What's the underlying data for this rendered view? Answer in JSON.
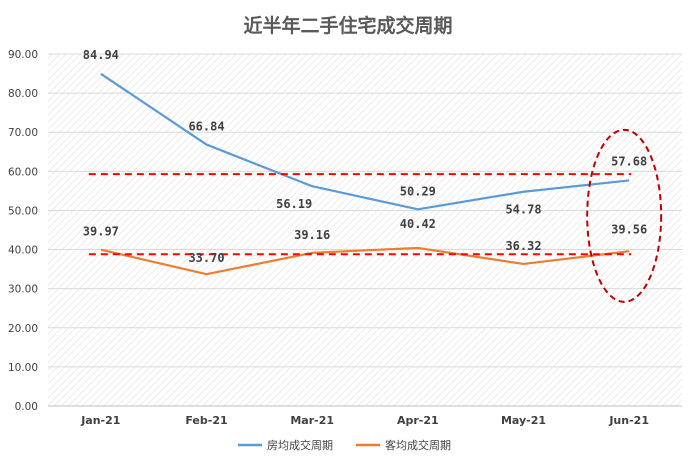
{
  "chart_data": {
    "type": "line",
    "title": "近半年二手住宅成交周期",
    "categories": [
      "Jan-21",
      "Feb-21",
      "Mar-21",
      "Apr-21",
      "May-21",
      "Jun-21"
    ],
    "ylim": [
      0,
      90
    ],
    "yticks": [
      "0.00",
      "10.00",
      "20.00",
      "30.00",
      "40.00",
      "50.00",
      "60.00",
      "70.00",
      "80.00",
      "90.00"
    ],
    "grid": true,
    "legend": "bottom",
    "series": [
      {
        "name": "房均成交周期",
        "color": "#5b9bd5",
        "values": [
          84.94,
          66.84,
          56.19,
          50.29,
          54.78,
          57.68
        ],
        "labels": [
          "84.94",
          "66.84",
          "56.19",
          "50.29",
          "54.78",
          "57.68"
        ]
      },
      {
        "name": "客均成交周期",
        "color": "#ed7d31",
        "values": [
          39.97,
          33.7,
          39.16,
          40.42,
          36.32,
          39.56
        ],
        "labels": [
          "39.97",
          "33.70",
          "39.16",
          "40.42",
          "36.32",
          "39.56"
        ]
      }
    ],
    "annotations": {
      "reference_lines": [
        {
          "value": 59.3,
          "color": "#ff0000",
          "style": "dashed"
        },
        {
          "value": 38.8,
          "color": "#ff0000",
          "style": "dashed"
        }
      ],
      "highlight_ellipse": {
        "category": "Jun-21",
        "color": "#c00000",
        "style": "dashed"
      }
    }
  }
}
